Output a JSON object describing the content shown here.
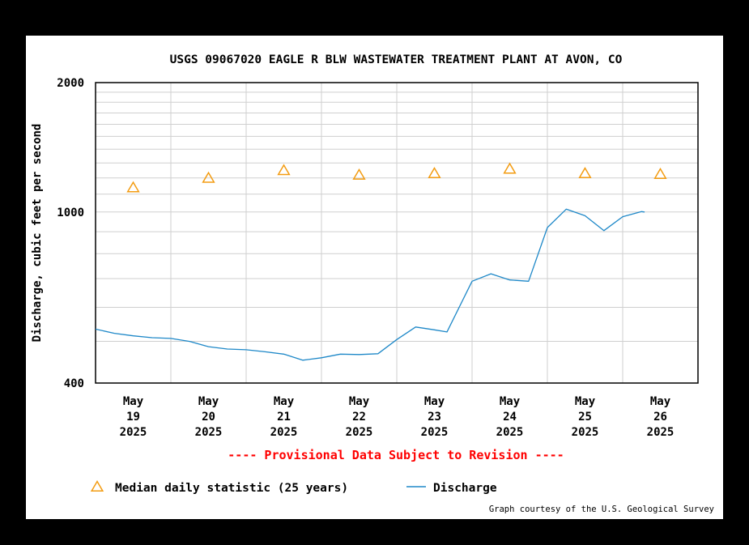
{
  "chart_data": {
    "type": "line",
    "title": "USGS 09067020 EAGLE R BLW WASTEWATER TREATMENT PLANT AT AVON, CO",
    "ylabel": "Discharge, cubic feet per second",
    "xlabel": "",
    "y_scale": "log",
    "ylim": [
      400,
      2000
    ],
    "y_tick_labels": [
      "2000",
      "1000",
      "400"
    ],
    "xlim": [
      "2025-05-19T00:00",
      "2025-05-27T00:00"
    ],
    "x_ticks": [
      {
        "x": "2025-05-19T12:00",
        "label": [
          "May",
          "19",
          "2025"
        ]
      },
      {
        "x": "2025-05-20T12:00",
        "label": [
          "May",
          "20",
          "2025"
        ]
      },
      {
        "x": "2025-05-21T12:00",
        "label": [
          "May",
          "21",
          "2025"
        ]
      },
      {
        "x": "2025-05-22T12:00",
        "label": [
          "May",
          "22",
          "2025"
        ]
      },
      {
        "x": "2025-05-23T12:00",
        "label": [
          "May",
          "23",
          "2025"
        ]
      },
      {
        "x": "2025-05-24T12:00",
        "label": [
          "May",
          "24",
          "2025"
        ]
      },
      {
        "x": "2025-05-25T12:00",
        "label": [
          "May",
          "25",
          "2025"
        ]
      },
      {
        "x": "2025-05-26T12:00",
        "label": [
          "May",
          "26",
          "2025"
        ]
      }
    ],
    "grid": true,
    "series": [
      {
        "name": "Median daily statistic (25 years)",
        "kind": "marker-triangle",
        "color": "#f39c12",
        "points": [
          {
            "x": "2025-05-19T12:00",
            "y": 1140
          },
          {
            "x": "2025-05-20T12:00",
            "y": 1200
          },
          {
            "x": "2025-05-21T12:00",
            "y": 1250
          },
          {
            "x": "2025-05-22T12:00",
            "y": 1220
          },
          {
            "x": "2025-05-23T12:00",
            "y": 1230
          },
          {
            "x": "2025-05-24T12:00",
            "y": 1260
          },
          {
            "x": "2025-05-25T12:00",
            "y": 1230
          },
          {
            "x": "2025-05-26T12:00",
            "y": 1225
          }
        ]
      },
      {
        "name": "Discharge",
        "kind": "line",
        "color": "#1e88c8",
        "points": [
          {
            "x": "2025-05-19T00:00",
            "y": 534
          },
          {
            "x": "2025-05-19T06:00",
            "y": 522
          },
          {
            "x": "2025-05-19T12:00",
            "y": 515
          },
          {
            "x": "2025-05-19T18:00",
            "y": 510
          },
          {
            "x": "2025-05-20T00:00",
            "y": 508
          },
          {
            "x": "2025-05-20T06:00",
            "y": 500
          },
          {
            "x": "2025-05-20T12:00",
            "y": 486
          },
          {
            "x": "2025-05-20T18:00",
            "y": 480
          },
          {
            "x": "2025-05-21T00:00",
            "y": 478
          },
          {
            "x": "2025-05-21T06:00",
            "y": 473
          },
          {
            "x": "2025-05-21T12:00",
            "y": 467
          },
          {
            "x": "2025-05-21T18:00",
            "y": 452
          },
          {
            "x": "2025-05-22T00:00",
            "y": 458
          },
          {
            "x": "2025-05-22T06:00",
            "y": 467
          },
          {
            "x": "2025-05-22T12:00",
            "y": 466
          },
          {
            "x": "2025-05-22T18:00",
            "y": 468
          },
          {
            "x": "2025-05-23T00:00",
            "y": 505
          },
          {
            "x": "2025-05-23T06:00",
            "y": 540
          },
          {
            "x": "2025-05-23T12:00",
            "y": 532
          },
          {
            "x": "2025-05-23T16:00",
            "y": 526
          },
          {
            "x": "2025-05-24T00:00",
            "y": 690
          },
          {
            "x": "2025-05-24T06:00",
            "y": 718
          },
          {
            "x": "2025-05-24T12:00",
            "y": 695
          },
          {
            "x": "2025-05-24T18:00",
            "y": 690
          },
          {
            "x": "2025-05-25T00:00",
            "y": 920
          },
          {
            "x": "2025-05-25T06:00",
            "y": 1015
          },
          {
            "x": "2025-05-25T12:00",
            "y": 980
          },
          {
            "x": "2025-05-25T18:00",
            "y": 905
          },
          {
            "x": "2025-05-26T00:00",
            "y": 975
          },
          {
            "x": "2025-05-26T06:00",
            "y": 1002
          },
          {
            "x": "2025-05-26T07:00",
            "y": 1000
          }
        ]
      }
    ],
    "legend": {
      "placement": "bottom-left"
    },
    "annotation": "---- Provisional Data Subject to Revision ----",
    "annotation_color": "#ff0000",
    "credit": "Graph courtesy of the U.S. Geological Survey"
  }
}
